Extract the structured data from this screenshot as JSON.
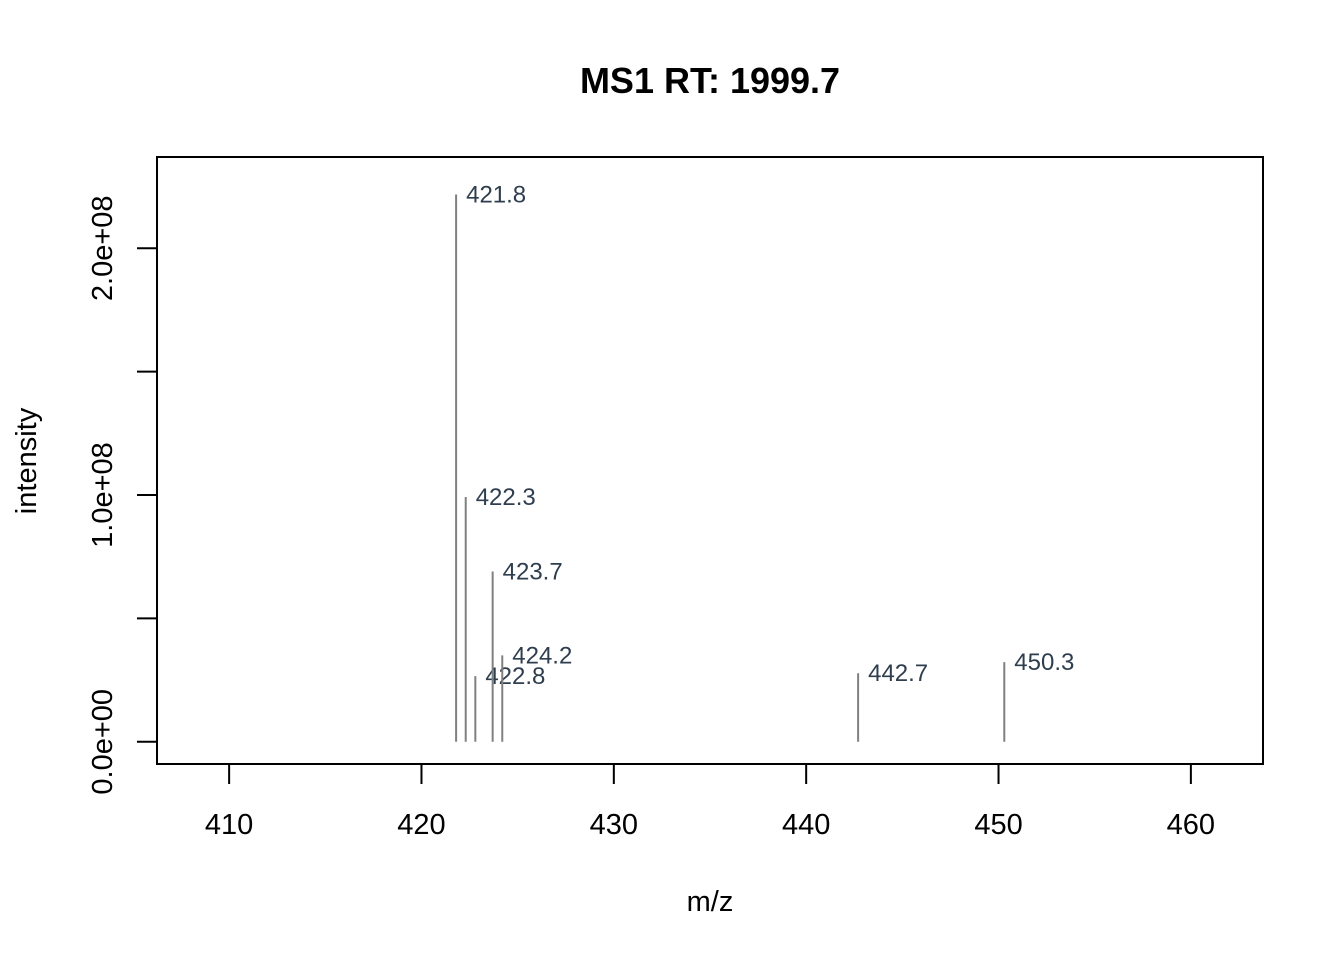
{
  "chart_data": {
    "type": "bar",
    "title": "MS1 RT: 1999.7",
    "xlabel": "m/z",
    "ylabel": "intensity",
    "xlim": [
      406.25,
      463.75
    ],
    "ylim": [
      -9000000,
      237000000
    ],
    "xticks": [
      410,
      420,
      430,
      440,
      450,
      460
    ],
    "xtick_labels": [
      "410",
      "420",
      "430",
      "440",
      "450",
      "460"
    ],
    "yticks": [
      0,
      50000000,
      100000000,
      150000000,
      200000000
    ],
    "ytick_labels": [
      "0.0e+00",
      "",
      "1.0e+08",
      "",
      "2.0e+08"
    ],
    "grid": false,
    "legend": "none",
    "peak_color": "#808080",
    "label_color": "#2f3e4e",
    "peaks": [
      {
        "mz": 421.8,
        "intensity": 221800000,
        "label": "421.8"
      },
      {
        "mz": 422.3,
        "intensity": 99200000,
        "label": "422.3"
      },
      {
        "mz": 422.8,
        "intensity": 26600000,
        "label": "422.8"
      },
      {
        "mz": 423.7,
        "intensity": 69000000,
        "label": "423.7"
      },
      {
        "mz": 424.2,
        "intensity": 35000000,
        "label": "424.2"
      },
      {
        "mz": 442.7,
        "intensity": 27800000,
        "label": "442.7"
      },
      {
        "mz": 450.3,
        "intensity": 32300000,
        "label": "450.3"
      }
    ]
  }
}
